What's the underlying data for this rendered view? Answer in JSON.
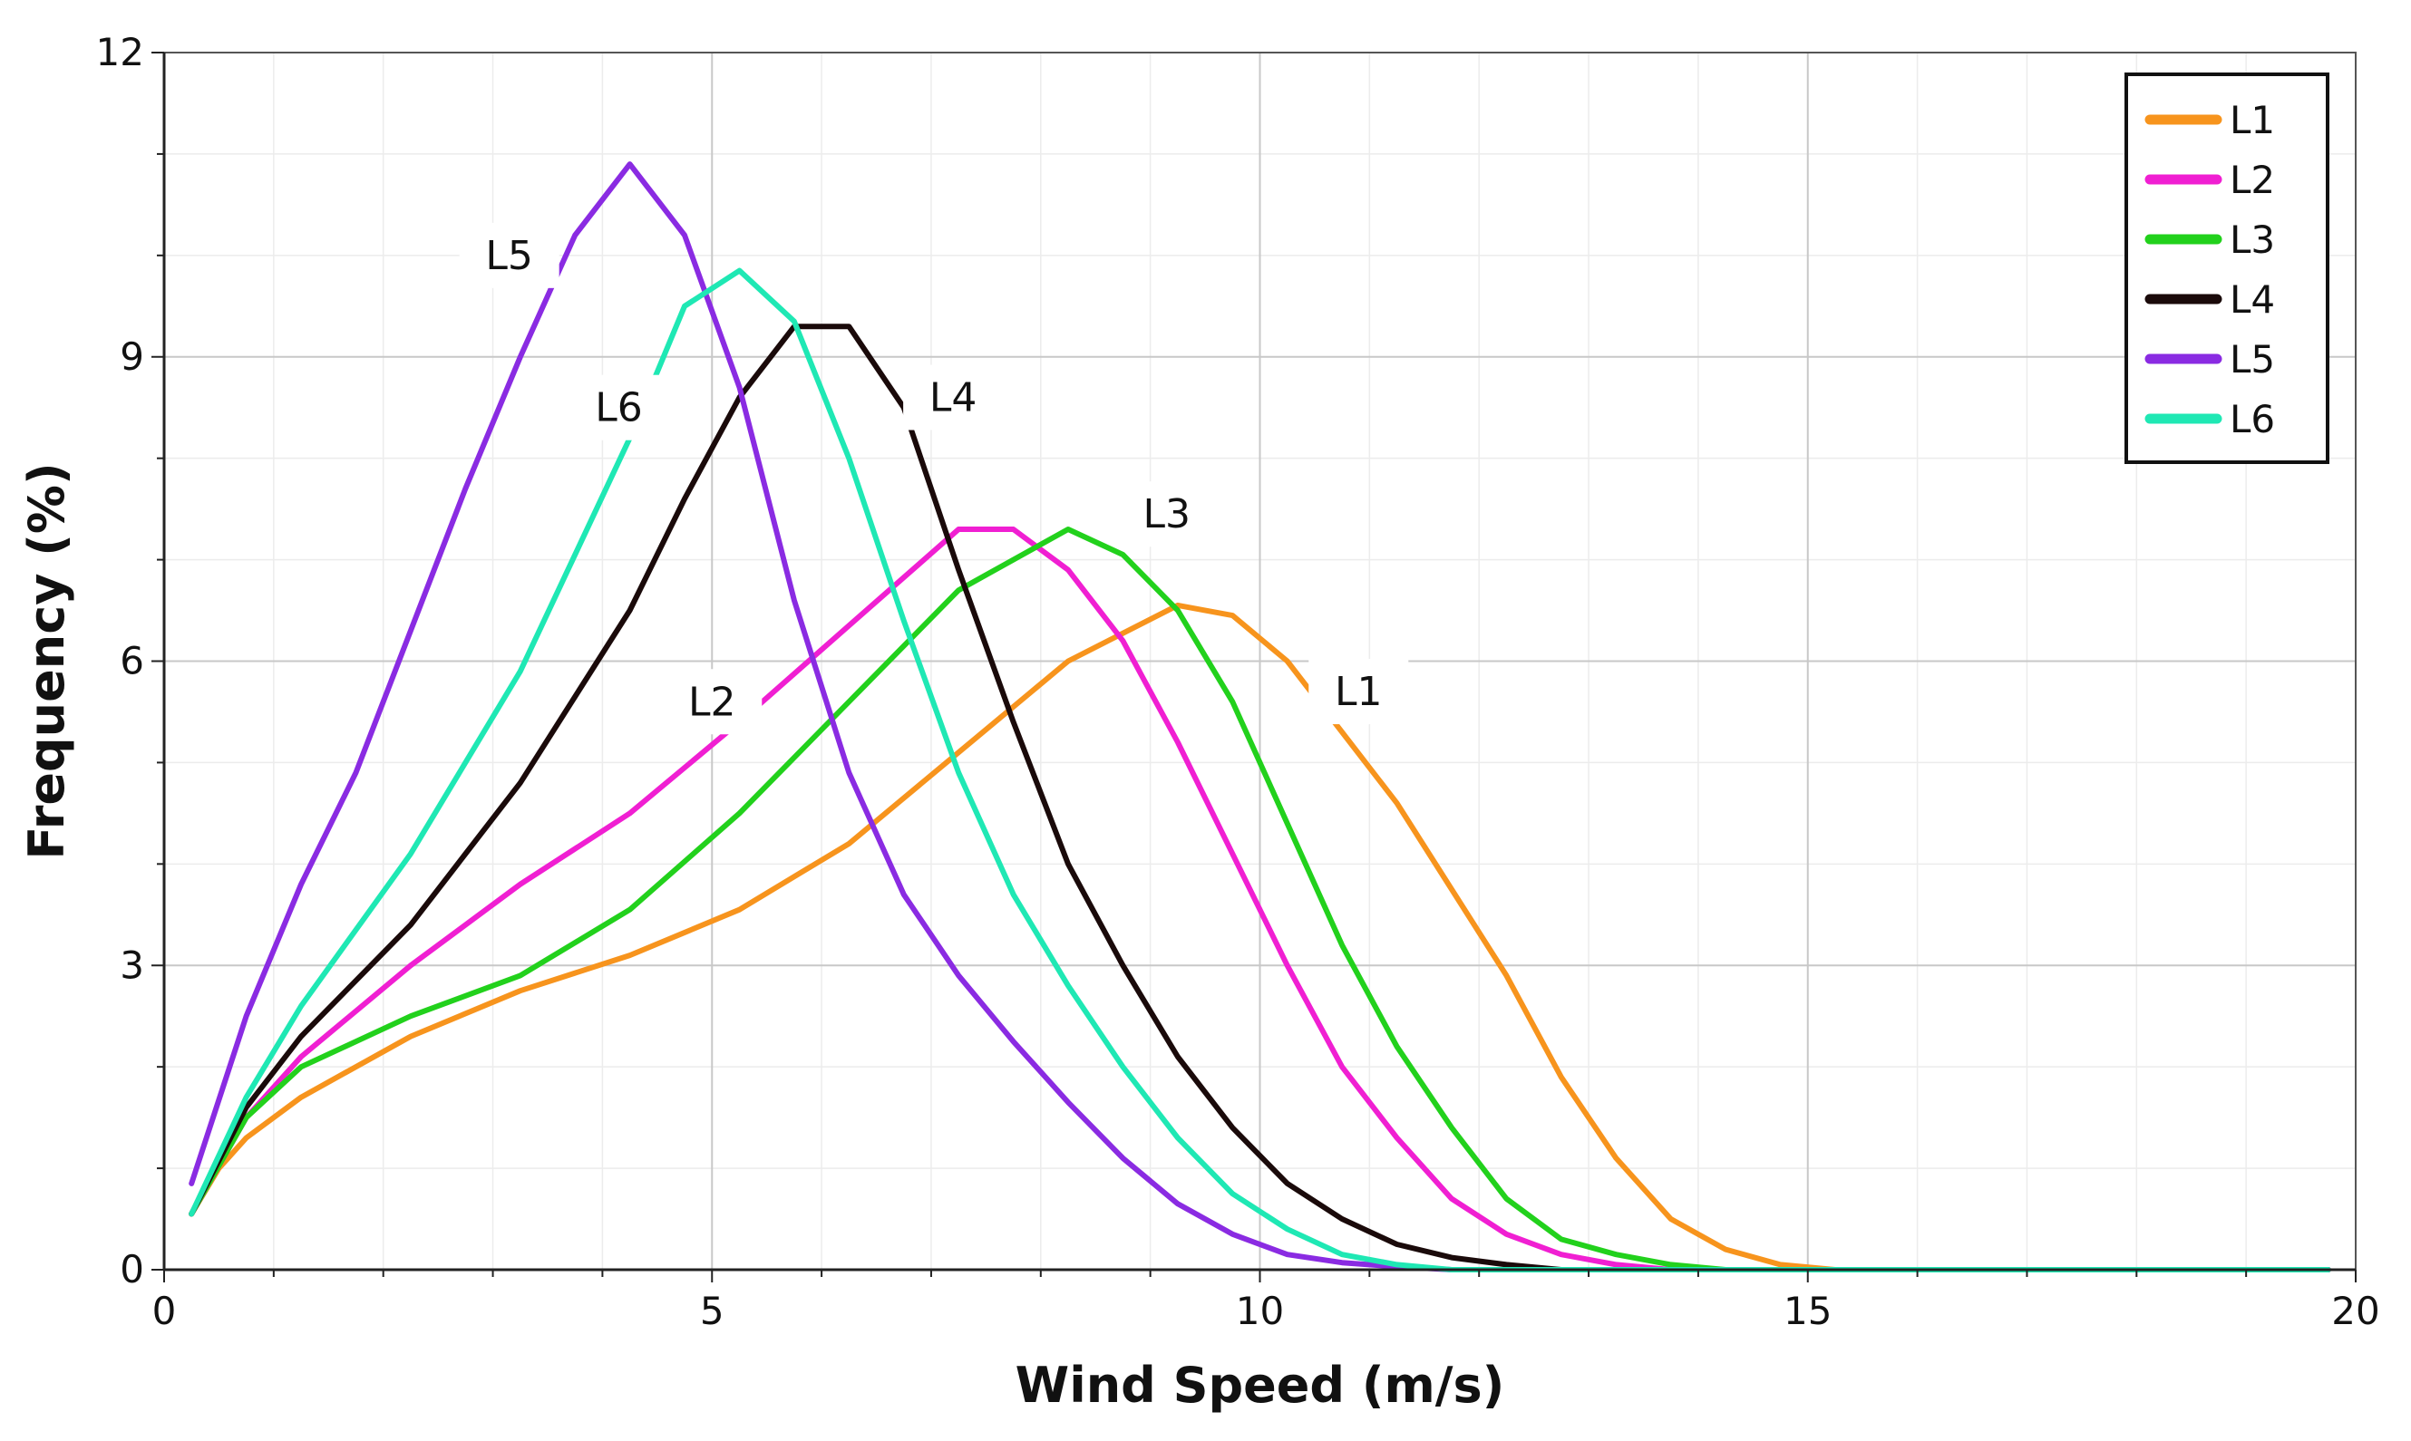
{
  "chart_data": {
    "type": "line",
    "title": "",
    "xlabel": "Wind Speed (m/s)",
    "ylabel": "Frequency (%)",
    "xlim": [
      0,
      20
    ],
    "ylim": [
      0,
      12
    ],
    "xticks": [
      0,
      5,
      10,
      15,
      20
    ],
    "yticks": [
      0,
      3,
      6,
      9,
      12
    ],
    "grid": true,
    "legend_position": "top-right",
    "series": [
      {
        "name": "L1",
        "color": "#F7941D",
        "points": [
          [
            0.25,
            0.55
          ],
          [
            0.5,
            1.0
          ],
          [
            0.75,
            1.3
          ],
          [
            1.25,
            1.7
          ],
          [
            2.25,
            2.3
          ],
          [
            3.25,
            2.75
          ],
          [
            4.25,
            3.1
          ],
          [
            5.25,
            3.55
          ],
          [
            6.25,
            4.2
          ],
          [
            7.25,
            5.1
          ],
          [
            8.25,
            6.0
          ],
          [
            9.25,
            6.55
          ],
          [
            9.75,
            6.45
          ],
          [
            10.25,
            6.0
          ],
          [
            10.75,
            5.3
          ],
          [
            11.25,
            4.6
          ],
          [
            12.25,
            2.9
          ],
          [
            12.75,
            1.9
          ],
          [
            13.25,
            1.1
          ],
          [
            13.75,
            0.5
          ],
          [
            14.25,
            0.2
          ],
          [
            14.75,
            0.05
          ],
          [
            15.25,
            0.0
          ],
          [
            19.75,
            0.0
          ]
        ]
      },
      {
        "name": "L2",
        "color": "#F01FD2",
        "points": [
          [
            0.25,
            0.55
          ],
          [
            0.75,
            1.5
          ],
          [
            1.25,
            2.1
          ],
          [
            2.25,
            3.0
          ],
          [
            3.25,
            3.8
          ],
          [
            4.25,
            4.5
          ],
          [
            5.25,
            5.4
          ],
          [
            6.25,
            6.35
          ],
          [
            7.25,
            7.3
          ],
          [
            7.75,
            7.3
          ],
          [
            8.25,
            6.9
          ],
          [
            8.75,
            6.2
          ],
          [
            9.25,
            5.2
          ],
          [
            9.75,
            4.1
          ],
          [
            10.25,
            3.0
          ],
          [
            10.75,
            2.0
          ],
          [
            11.25,
            1.3
          ],
          [
            11.75,
            0.7
          ],
          [
            12.25,
            0.35
          ],
          [
            12.75,
            0.15
          ],
          [
            13.25,
            0.05
          ],
          [
            13.75,
            0.0
          ],
          [
            19.75,
            0.0
          ]
        ]
      },
      {
        "name": "L3",
        "color": "#22D11C",
        "points": [
          [
            0.25,
            0.55
          ],
          [
            0.75,
            1.5
          ],
          [
            1.25,
            2.0
          ],
          [
            2.25,
            2.5
          ],
          [
            3.25,
            2.9
          ],
          [
            4.25,
            3.55
          ],
          [
            5.25,
            4.5
          ],
          [
            6.25,
            5.6
          ],
          [
            7.25,
            6.7
          ],
          [
            8.25,
            7.3
          ],
          [
            8.75,
            7.05
          ],
          [
            9.25,
            6.5
          ],
          [
            9.75,
            5.6
          ],
          [
            10.25,
            4.4
          ],
          [
            10.75,
            3.2
          ],
          [
            11.25,
            2.2
          ],
          [
            11.75,
            1.4
          ],
          [
            12.25,
            0.7
          ],
          [
            12.75,
            0.3
          ],
          [
            13.25,
            0.15
          ],
          [
            13.75,
            0.05
          ],
          [
            14.25,
            0.0
          ],
          [
            19.75,
            0.0
          ]
        ]
      },
      {
        "name": "L4",
        "color": "#1A0A0A",
        "points": [
          [
            0.25,
            0.55
          ],
          [
            0.75,
            1.6
          ],
          [
            1.25,
            2.3
          ],
          [
            2.25,
            3.4
          ],
          [
            3.25,
            4.8
          ],
          [
            4.25,
            6.5
          ],
          [
            4.75,
            7.6
          ],
          [
            5.25,
            8.6
          ],
          [
            5.75,
            9.3
          ],
          [
            6.25,
            9.3
          ],
          [
            6.75,
            8.5
          ],
          [
            7.25,
            6.9
          ],
          [
            7.75,
            5.4
          ],
          [
            8.25,
            4.0
          ],
          [
            8.75,
            3.0
          ],
          [
            9.25,
            2.1
          ],
          [
            9.75,
            1.4
          ],
          [
            10.25,
            0.85
          ],
          [
            10.75,
            0.5
          ],
          [
            11.25,
            0.25
          ],
          [
            11.75,
            0.12
          ],
          [
            12.25,
            0.05
          ],
          [
            12.75,
            0.0
          ],
          [
            19.75,
            0.0
          ]
        ]
      },
      {
        "name": "L5",
        "color": "#8A2BE2",
        "points": [
          [
            0.25,
            0.85
          ],
          [
            0.75,
            2.5
          ],
          [
            1.25,
            3.8
          ],
          [
            1.75,
            4.9
          ],
          [
            2.25,
            6.3
          ],
          [
            2.75,
            7.7
          ],
          [
            3.25,
            9.0
          ],
          [
            3.75,
            10.2
          ],
          [
            4.25,
            10.9
          ],
          [
            4.75,
            10.2
          ],
          [
            5.25,
            8.7
          ],
          [
            5.75,
            6.6
          ],
          [
            6.25,
            4.9
          ],
          [
            6.75,
            3.7
          ],
          [
            7.25,
            2.9
          ],
          [
            7.75,
            2.25
          ],
          [
            8.25,
            1.65
          ],
          [
            8.75,
            1.1
          ],
          [
            9.25,
            0.65
          ],
          [
            9.75,
            0.35
          ],
          [
            10.25,
            0.15
          ],
          [
            10.75,
            0.07
          ],
          [
            11.25,
            0.03
          ],
          [
            11.75,
            0.0
          ],
          [
            19.75,
            0.0
          ]
        ]
      },
      {
        "name": "L6",
        "color": "#1FE8B4",
        "points": [
          [
            0.25,
            0.55
          ],
          [
            0.75,
            1.7
          ],
          [
            1.25,
            2.6
          ],
          [
            2.25,
            4.1
          ],
          [
            3.25,
            5.9
          ],
          [
            4.25,
            8.2
          ],
          [
            4.75,
            9.5
          ],
          [
            5.25,
            9.85
          ],
          [
            5.75,
            9.35
          ],
          [
            6.25,
            8.0
          ],
          [
            6.75,
            6.4
          ],
          [
            7.25,
            4.9
          ],
          [
            7.75,
            3.7
          ],
          [
            8.25,
            2.8
          ],
          [
            8.75,
            2.0
          ],
          [
            9.25,
            1.3
          ],
          [
            9.75,
            0.75
          ],
          [
            10.25,
            0.4
          ],
          [
            10.75,
            0.15
          ],
          [
            11.25,
            0.05
          ],
          [
            11.75,
            0.0
          ],
          [
            19.75,
            0.0
          ]
        ]
      }
    ],
    "annotations": [
      {
        "text": "L5",
        "x": 3.15,
        "y": 10.0
      },
      {
        "text": "L6",
        "x": 4.15,
        "y": 8.5
      },
      {
        "text": "L4",
        "x": 7.2,
        "y": 8.6
      },
      {
        "text": "L3",
        "x": 9.15,
        "y": 7.45
      },
      {
        "text": "L2",
        "x": 5.0,
        "y": 5.6
      },
      {
        "text": "L1",
        "x": 10.9,
        "y": 5.7
      }
    ]
  }
}
